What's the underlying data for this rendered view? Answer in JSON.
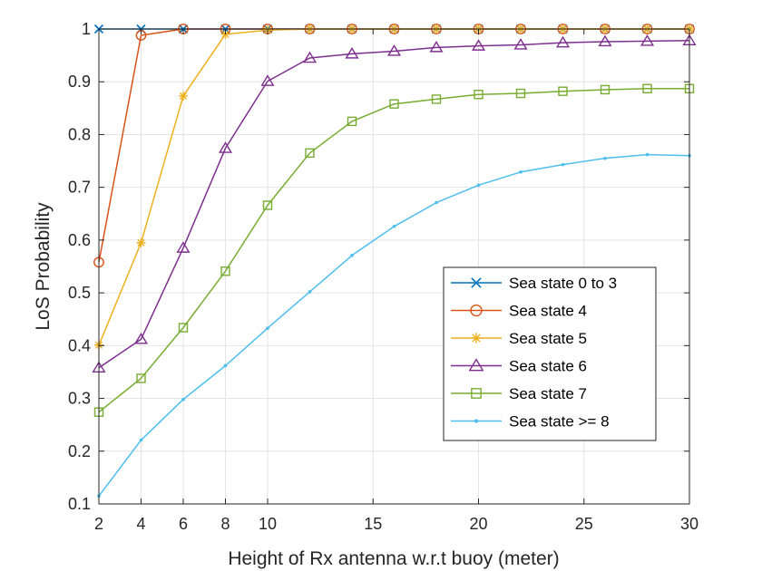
{
  "chart_data": {
    "type": "line",
    "title": "",
    "xlabel": "Height of Rx antenna w.r.t buoy (meter)",
    "ylabel": "LoS Probability",
    "xlim": [
      2,
      30
    ],
    "ylim": [
      0.1,
      1.0
    ],
    "grid": true,
    "legend_position": "center-right",
    "x_ticks": [
      2,
      4,
      6,
      8,
      10,
      15,
      20,
      25,
      30
    ],
    "y_ticks": [
      0.1,
      0.2,
      0.3,
      0.4,
      0.5,
      0.6,
      0.7,
      0.8,
      0.9,
      1
    ],
    "x": [
      2,
      4,
      6,
      8,
      10,
      12,
      14,
      16,
      18,
      20,
      22,
      24,
      26,
      28,
      30
    ],
    "series": [
      {
        "name": "Sea state 0 to 3",
        "color": "#0072BD",
        "marker": "x-icon",
        "values": [
          1,
          1,
          1,
          1,
          1,
          1,
          1,
          1,
          1,
          1,
          1,
          1,
          1,
          1,
          1
        ]
      },
      {
        "name": "Sea state 4",
        "color": "#D95319",
        "marker": "circle-icon",
        "values": [
          0.558,
          0.988,
          1,
          1,
          1,
          1,
          1,
          1,
          1,
          1,
          1,
          1,
          1,
          1,
          1
        ]
      },
      {
        "name": "Sea state 5",
        "color": "#EDB120",
        "marker": "asterisk-icon",
        "values": [
          0.401,
          0.595,
          0.873,
          0.99,
          0.998,
          1,
          1,
          1,
          1,
          1,
          1,
          1,
          1,
          1,
          1
        ]
      },
      {
        "name": "Sea state 6",
        "color": "#7E2F8E",
        "marker": "triangle-icon",
        "values": [
          0.358,
          0.412,
          0.585,
          0.774,
          0.901,
          0.945,
          0.953,
          0.958,
          0.965,
          0.968,
          0.97,
          0.974,
          0.976,
          0.977,
          0.978
        ]
      },
      {
        "name": "Sea state 7",
        "color": "#77AC30",
        "marker": "square-icon",
        "values": [
          0.274,
          0.338,
          0.434,
          0.541,
          0.666,
          0.765,
          0.825,
          0.858,
          0.867,
          0.876,
          0.878,
          0.882,
          0.885,
          0.887,
          0.887
        ]
      },
      {
        "name": "Sea state >= 8",
        "color": "#4DBEEE",
        "marker": "dot-icon",
        "values": [
          0.115,
          0.221,
          0.298,
          0.362,
          0.433,
          0.502,
          0.571,
          0.626,
          0.671,
          0.704,
          0.729,
          0.743,
          0.755,
          0.762,
          0.76
        ]
      }
    ]
  }
}
